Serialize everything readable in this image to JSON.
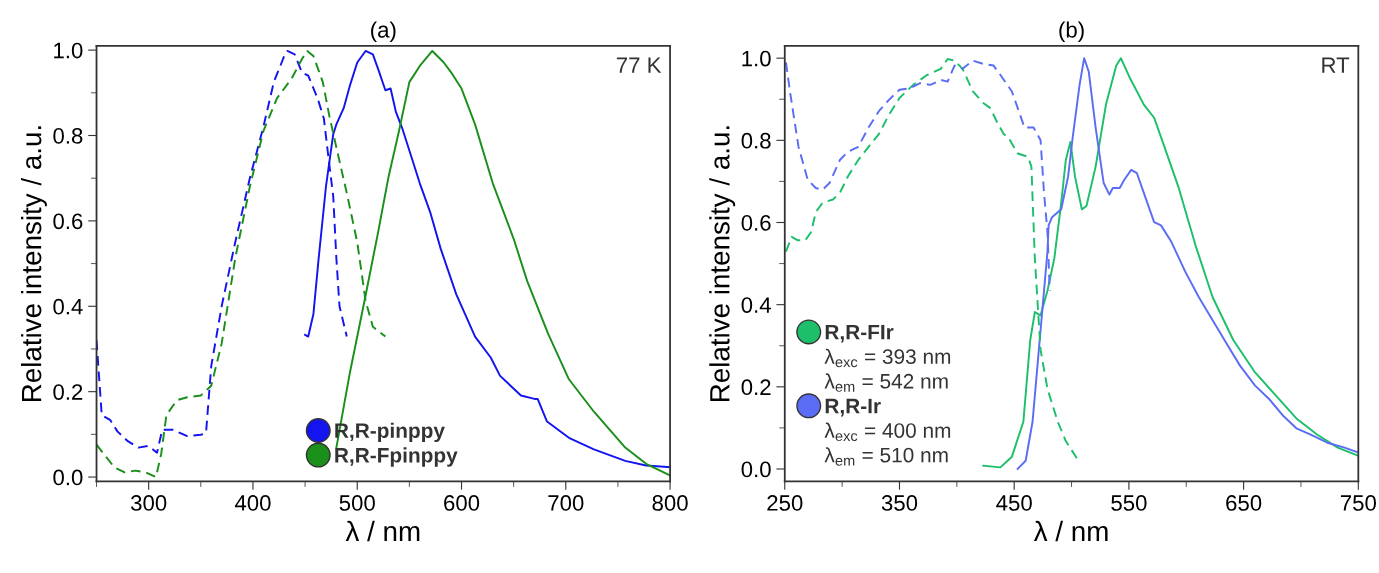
{
  "chart_data": [
    {
      "type": "line",
      "title": "(a)",
      "xlabel": "λ / nm",
      "ylabel": "Relative intensity / a.u.",
      "xlim": [
        250,
        800
      ],
      "ylim": [
        -0.01,
        1.01
      ],
      "xticks": [
        {
          "value": 250,
          "label": null
        },
        300,
        {
          "value": 350,
          "label": null
        },
        400,
        {
          "value": 450,
          "label": null
        },
        500,
        {
          "value": 550,
          "label": null
        },
        600,
        {
          "value": 650,
          "label": null
        },
        700,
        {
          "value": 750,
          "label": null
        },
        800
      ],
      "yticks": [
        {
          "value": 0,
          "label": "0.0"
        },
        {
          "value": 0.1,
          "label": null
        },
        0.2,
        {
          "value": 0.3,
          "label": null
        },
        0.4,
        {
          "value": 0.5,
          "label": null
        },
        0.6,
        {
          "value": 0.7,
          "label": null
        },
        0.8,
        {
          "value": 0.9,
          "label": null
        },
        {
          "value": 1,
          "label": "1.0"
        }
      ],
      "legend": "bottom",
      "annotations": [
        "77 K"
      ],
      "series": [
        {
          "name": "R,R-pinppy",
          "color": "#1414f0",
          "line_style": "solid",
          "x": [
            450,
            453,
            458,
            463,
            470,
            477,
            480,
            487,
            493,
            500,
            508,
            515,
            520,
            527,
            532,
            537,
            543,
            550,
            560,
            570,
            580,
            595,
            613,
            628,
            637,
            657,
            670,
            673,
            682,
            703,
            727,
            757,
            777,
            800
          ],
          "values": [
            0.333,
            0.329,
            0.382,
            0.512,
            0.68,
            0.803,
            0.826,
            0.864,
            0.917,
            0.971,
            0.998,
            0.99,
            0.956,
            0.906,
            0.91,
            0.856,
            0.818,
            0.765,
            0.688,
            0.62,
            0.535,
            0.428,
            0.329,
            0.28,
            0.237,
            0.191,
            0.183,
            0.183,
            0.13,
            0.092,
            0.065,
            0.038,
            0.027,
            0.023
          ]
        },
        {
          "name": "R,R-Fpinppy",
          "color": "#1a8f1a",
          "line_style": "solid",
          "x": [
            480,
            493,
            507,
            520,
            530,
            540,
            550,
            560,
            572,
            583,
            590,
            600,
            613,
            630,
            650,
            663,
            683,
            703,
            727,
            757,
            777,
            800
          ],
          "values": [
            0.069,
            0.245,
            0.413,
            0.573,
            0.703,
            0.81,
            0.925,
            0.963,
            0.998,
            0.971,
            0.948,
            0.91,
            0.826,
            0.688,
            0.558,
            0.459,
            0.336,
            0.229,
            0.153,
            0.069,
            0.031,
            0.004
          ]
        },
        {
          "color": "#1414f0",
          "line_style": "dashed",
          "x": [
            250,
            255,
            263,
            270,
            280,
            290,
            300,
            308,
            313,
            323,
            337,
            350,
            355,
            360,
            370,
            383,
            397,
            410,
            420,
            430,
            433,
            440,
            447,
            453,
            462,
            468,
            472,
            477,
            480,
            483,
            490
          ],
          "values": [
            0.32,
            0.145,
            0.134,
            0.107,
            0.084,
            0.069,
            0.073,
            0.057,
            0.111,
            0.111,
            0.096,
            0.099,
            0.103,
            0.26,
            0.4,
            0.55,
            0.7,
            0.82,
            0.925,
            0.986,
            0.998,
            0.99,
            0.948,
            0.94,
            0.887,
            0.84,
            0.757,
            0.657,
            0.512,
            0.4,
            0.329
          ]
        },
        {
          "color": "#1a8f1a",
          "line_style": "dashed",
          "x": [
            250,
            257,
            267,
            277,
            287,
            297,
            307,
            312,
            317,
            327,
            337,
            350,
            360,
            370,
            383,
            397,
            410,
            423,
            437,
            447,
            452,
            458,
            467,
            473,
            480,
            490,
            500,
            508,
            515,
            527
          ],
          "values": [
            0.076,
            0.054,
            0.023,
            0.011,
            0.015,
            0.011,
            0.0,
            0.054,
            0.145,
            0.18,
            0.187,
            0.191,
            0.214,
            0.313,
            0.512,
            0.68,
            0.81,
            0.887,
            0.933,
            0.979,
            0.998,
            0.986,
            0.925,
            0.849,
            0.772,
            0.665,
            0.55,
            0.413,
            0.352,
            0.329
          ]
        }
      ]
    },
    {
      "type": "line",
      "title": "(b)",
      "xlabel": "λ / nm",
      "ylabel": "Relative intensity / a.u.",
      "xlim": [
        250,
        750
      ],
      "ylim": [
        -0.03,
        1.03
      ],
      "xticks": [
        250,
        {
          "value": 300,
          "label": null
        },
        350,
        {
          "value": 400,
          "label": null
        },
        450,
        {
          "value": 500,
          "label": null
        },
        550,
        {
          "value": 600,
          "label": null
        },
        650,
        {
          "value": 700,
          "label": null
        },
        750
      ],
      "yticks": [
        {
          "value": 0,
          "label": "0.0"
        },
        {
          "value": 0.1,
          "label": null
        },
        0.2,
        {
          "value": 0.3,
          "label": null
        },
        0.4,
        {
          "value": 0.5,
          "label": null
        },
        0.6,
        {
          "value": 0.7,
          "label": null
        },
        0.8,
        {
          "value": 0.9,
          "label": null
        },
        {
          "value": 1,
          "label": "1.0"
        }
      ],
      "legend": "bottom left",
      "annotations": [
        "RT",
        "λ$_{exc}$ = 393 nm",
        "λ$_{em}$ = 542 nm",
        "λ$_{exc}$ = 400 nm",
        "λ$_{em}$ = 510 nm"
      ],
      "series": [
        {
          "name": "R,R-FIr",
          "color": "#1dbf6b",
          "line_style": "solid",
          "x": [
            423,
            438,
            448,
            458,
            464,
            468,
            473,
            479,
            485,
            491,
            495,
            499,
            503,
            509,
            513,
            521,
            530,
            539,
            543,
            551,
            563,
            572,
            580,
            593,
            608,
            623,
            641,
            660,
            678,
            696,
            714,
            732,
            750
          ],
          "values": [
            0.008,
            0.004,
            0.03,
            0.115,
            0.314,
            0.382,
            0.374,
            0.434,
            0.513,
            0.648,
            0.752,
            0.796,
            0.712,
            0.632,
            0.64,
            0.736,
            0.887,
            0.982,
            1.0,
            0.951,
            0.887,
            0.855,
            0.792,
            0.688,
            0.545,
            0.418,
            0.314,
            0.235,
            0.179,
            0.123,
            0.084,
            0.052,
            0.032
          ]
        },
        {
          "name": "R,R-Ir",
          "color": "#5b6cf5",
          "line_style": "solid",
          "x": [
            453,
            460,
            466,
            471,
            474,
            479,
            480,
            483,
            491,
            497,
            501,
            507,
            511,
            515,
            521,
            528,
            533,
            536,
            542,
            546,
            552,
            557,
            563,
            572,
            578,
            587,
            599,
            611,
            623,
            635,
            647,
            660,
            672,
            684,
            696,
            708,
            723,
            738,
            750
          ],
          "values": [
            0.0,
            0.02,
            0.115,
            0.274,
            0.37,
            0.529,
            0.593,
            0.613,
            0.632,
            0.712,
            0.807,
            0.935,
            1.0,
            0.967,
            0.831,
            0.696,
            0.668,
            0.684,
            0.684,
            0.704,
            0.728,
            0.72,
            0.672,
            0.601,
            0.593,
            0.553,
            0.481,
            0.418,
            0.362,
            0.306,
            0.251,
            0.203,
            0.171,
            0.131,
            0.099,
            0.084,
            0.064,
            0.052,
            0.04
          ]
        },
        {
          "color": "#1dbf6b",
          "line_style": "dashed",
          "x": [
            251,
            256,
            261,
            268,
            273,
            277,
            283,
            292,
            298,
            305,
            314,
            323,
            332,
            341,
            350,
            362,
            374,
            386,
            392,
            398,
            405,
            414,
            423,
            429,
            436,
            441,
            445,
            453,
            462,
            465,
            468,
            471,
            473,
            479,
            488,
            495,
            506
          ],
          "values": [
            0.529,
            0.565,
            0.557,
            0.557,
            0.577,
            0.625,
            0.648,
            0.656,
            0.672,
            0.712,
            0.752,
            0.784,
            0.815,
            0.863,
            0.903,
            0.935,
            0.959,
            0.974,
            0.998,
            0.994,
            0.974,
            0.919,
            0.891,
            0.879,
            0.839,
            0.815,
            0.807,
            0.768,
            0.76,
            0.736,
            0.513,
            0.378,
            0.29,
            0.195,
            0.115,
            0.068,
            0.02
          ]
        },
        {
          "color": "#5b6cf5",
          "line_style": "dashed",
          "x": [
            251,
            255,
            262,
            270,
            277,
            283,
            289,
            298,
            305,
            314,
            323,
            332,
            341,
            350,
            359,
            368,
            377,
            386,
            392,
            398,
            405,
            414,
            423,
            432,
            438,
            448,
            459,
            467,
            473,
            476,
            479,
            481
          ],
          "values": [
            0.99,
            0.91,
            0.784,
            0.704,
            0.684,
            0.68,
            0.696,
            0.752,
            0.772,
            0.784,
            0.831,
            0.871,
            0.899,
            0.923,
            0.927,
            0.939,
            0.935,
            0.947,
            0.943,
            0.982,
            0.974,
            0.994,
            0.986,
            0.982,
            0.959,
            0.919,
            0.831,
            0.831,
            0.8,
            0.672,
            0.577,
            0.434
          ]
        }
      ]
    }
  ]
}
